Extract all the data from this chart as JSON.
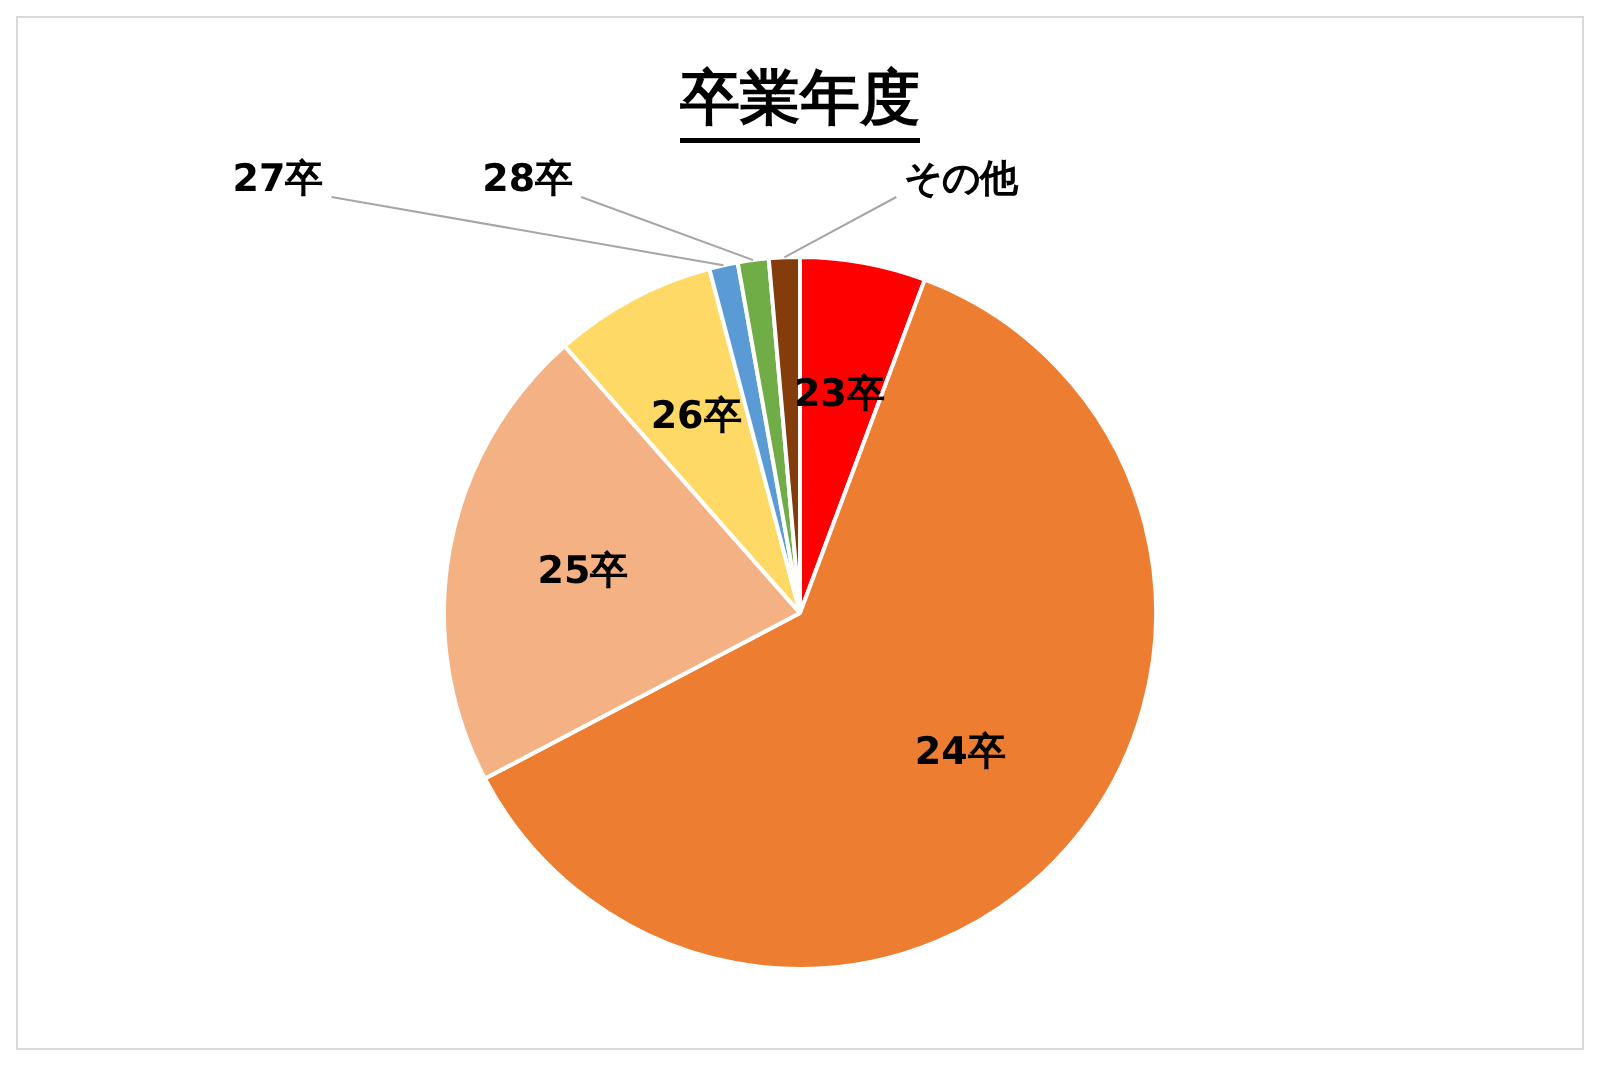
{
  "chart_data": {
    "type": "pie",
    "title": "卒業年度",
    "categories": [
      "23卒",
      "24卒",
      "25卒",
      "26卒",
      "27卒",
      "28卒",
      "その他"
    ],
    "values": [
      5.7,
      61.6,
      21.2,
      7.4,
      1.3,
      1.4,
      1.4
    ],
    "colors": [
      "#ff0000",
      "#ed7d31",
      "#f4b183",
      "#ffd966",
      "#5b9bd5",
      "#70ad47",
      "#843c0c"
    ],
    "legend": false
  }
}
